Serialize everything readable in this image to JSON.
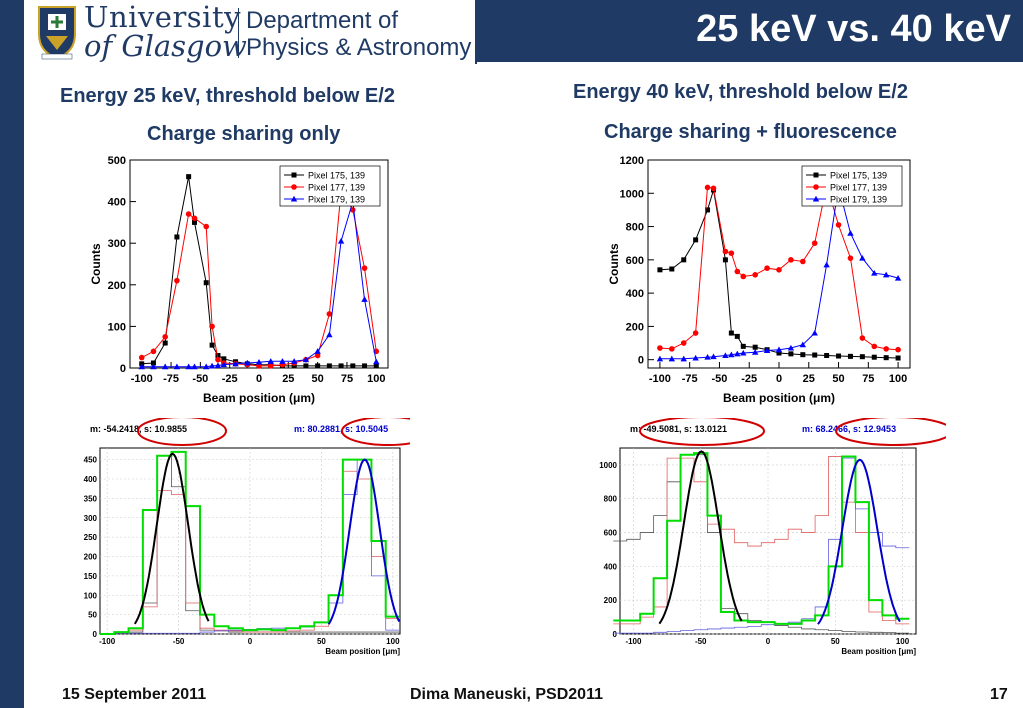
{
  "header": {
    "university_line1": "University",
    "university_line2": "of Glasgow",
    "department_line1": "Department of",
    "department_line2": "Physics & Astronomy",
    "slide_title": "25 keV vs. 40 keV"
  },
  "left_panel": {
    "heading": "Energy 25 keV, threshold below E/2",
    "subheading": "Charge sharing only"
  },
  "right_panel": {
    "heading": "Energy 40 keV, threshold below E/2",
    "subheading": "Charge sharing + fluorescence"
  },
  "footer": {
    "date": "15 September 2011",
    "author": "Dima Maneuski, PSD2011",
    "page": "17"
  },
  "colors": {
    "navy": "#1f3a64",
    "pixel_175": "#000000",
    "pixel_177": "#ff0000",
    "pixel_179": "#0000ff",
    "fit_green": "#00dd00",
    "ellipse": "#d00000"
  },
  "chart_data": [
    {
      "type": "line",
      "xlabel": "Beam position (μm)",
      "ylabel": "Counts",
      "xlim": [
        -110,
        110
      ],
      "ylim": [
        0,
        500
      ],
      "xticks": [
        -100,
        -75,
        -50,
        -25,
        0,
        25,
        50,
        75,
        100
      ],
      "yticks": [
        0,
        100,
        200,
        300,
        400,
        500
      ],
      "legend_position": "top-right",
      "series": [
        {
          "name": "Pixel 175, 139",
          "color": "#000000",
          "marker": "square",
          "x": [
            -100,
            -90,
            -80,
            -70,
            -60,
            -55,
            -45,
            -40,
            -35,
            -30,
            -20,
            -10,
            0,
            10,
            20,
            30,
            40,
            50,
            60,
            70,
            80,
            90,
            100
          ],
          "y": [
            10,
            12,
            60,
            315,
            460,
            350,
            205,
            55,
            30,
            22,
            15,
            10,
            8,
            8,
            5,
            5,
            5,
            5,
            5,
            5,
            5,
            5,
            5
          ]
        },
        {
          "name": "Pixel 177, 139",
          "color": "#ff0000",
          "marker": "circle",
          "x": [
            -100,
            -90,
            -80,
            -70,
            -60,
            -55,
            -45,
            -40,
            -35,
            -30,
            -20,
            -10,
            0,
            10,
            20,
            30,
            40,
            50,
            60,
            70,
            80,
            90,
            100
          ],
          "y": [
            25,
            40,
            75,
            210,
            370,
            360,
            340,
            100,
            20,
            12,
            10,
            8,
            5,
            5,
            8,
            12,
            20,
            30,
            130,
            425,
            380,
            240,
            40
          ]
        },
        {
          "name": "Pixel 179, 139",
          "color": "#0000ff",
          "marker": "triangle",
          "x": [
            -100,
            -90,
            -80,
            -70,
            -60,
            -55,
            -45,
            -40,
            -35,
            -30,
            -20,
            -10,
            0,
            10,
            20,
            30,
            40,
            50,
            60,
            70,
            80,
            90,
            100
          ],
          "y": [
            3,
            3,
            3,
            3,
            3,
            3,
            3,
            5,
            6,
            8,
            10,
            12,
            14,
            16,
            16,
            16,
            20,
            40,
            80,
            305,
            400,
            165,
            15
          ]
        }
      ]
    },
    {
      "type": "line",
      "xlabel": "Beam position (μm)",
      "ylabel": "Counts",
      "xlim": [
        -110,
        110
      ],
      "ylim": [
        -50,
        1200
      ],
      "xticks": [
        -100,
        -75,
        -50,
        -25,
        0,
        25,
        50,
        75,
        100
      ],
      "yticks": [
        0,
        200,
        400,
        600,
        800,
        1000,
        1200
      ],
      "legend_position": "top-right",
      "series": [
        {
          "name": "Pixel 175, 139",
          "color": "#000000",
          "marker": "square",
          "x": [
            -100,
            -90,
            -80,
            -70,
            -60,
            -55,
            -45,
            -40,
            -35,
            -30,
            -20,
            -10,
            0,
            10,
            20,
            30,
            40,
            50,
            60,
            70,
            80,
            90,
            100
          ],
          "y": [
            540,
            545,
            600,
            720,
            900,
            1020,
            600,
            160,
            140,
            80,
            75,
            60,
            40,
            35,
            30,
            28,
            25,
            22,
            20,
            18,
            15,
            12,
            10
          ]
        },
        {
          "name": "Pixel 177, 139",
          "color": "#ff0000",
          "marker": "circle",
          "x": [
            -100,
            -90,
            -80,
            -70,
            -60,
            -55,
            -45,
            -40,
            -35,
            -30,
            -20,
            -10,
            0,
            10,
            20,
            30,
            40,
            50,
            60,
            70,
            80,
            90,
            100
          ],
          "y": [
            70,
            65,
            100,
            160,
            1035,
            1030,
            650,
            640,
            530,
            500,
            510,
            550,
            540,
            600,
            590,
            700,
            1050,
            810,
            610,
            130,
            80,
            65,
            60
          ]
        },
        {
          "name": "Pixel 179, 139",
          "color": "#0000ff",
          "marker": "triangle",
          "x": [
            -100,
            -90,
            -80,
            -70,
            -60,
            -55,
            -45,
            -40,
            -35,
            -30,
            -20,
            -10,
            0,
            10,
            20,
            30,
            40,
            50,
            60,
            70,
            80,
            90,
            100
          ],
          "y": [
            5,
            5,
            5,
            10,
            15,
            18,
            25,
            30,
            35,
            40,
            45,
            55,
            60,
            70,
            90,
            160,
            570,
            1040,
            760,
            610,
            520,
            510,
            490
          ]
        }
      ]
    },
    {
      "type": "histogram",
      "fit_left_label": "m: -54.2418, s: 10.9855",
      "fit_right_label": "m: 80.2881, s: 10.5045",
      "xlabel": "Beam position [μm]",
      "xlim": [
        -105,
        105
      ],
      "ylim": [
        0,
        480
      ],
      "xticks": [
        -100,
        -50,
        0,
        50,
        100
      ],
      "yticks": [
        0,
        50,
        100,
        150,
        200,
        250,
        300,
        350,
        400,
        450
      ],
      "bins_x": [
        -100,
        -90,
        -80,
        -70,
        -60,
        -50,
        -40,
        -30,
        -20,
        -10,
        0,
        10,
        20,
        30,
        40,
        50,
        60,
        70,
        80,
        90,
        100
      ],
      "hist_black": [
        0,
        2,
        5,
        80,
        460,
        380,
        60,
        10,
        8,
        5,
        5,
        5,
        5,
        5,
        5,
        5,
        5,
        5,
        5,
        5,
        5
      ],
      "hist_red": [
        0,
        5,
        10,
        70,
        370,
        360,
        80,
        15,
        10,
        8,
        5,
        5,
        5,
        8,
        10,
        20,
        100,
        420,
        400,
        200,
        40
      ],
      "hist_blue": [
        0,
        2,
        2,
        2,
        2,
        2,
        2,
        5,
        8,
        10,
        12,
        14,
        15,
        15,
        18,
        30,
        80,
        360,
        450,
        150,
        10
      ],
      "hist_green": [
        0,
        5,
        15,
        320,
        460,
        470,
        330,
        50,
        20,
        15,
        10,
        12,
        10,
        15,
        20,
        30,
        100,
        450,
        450,
        240,
        45
      ],
      "fit_left": {
        "mean": -54.2418,
        "sigma": 10.9855,
        "amp": 465
      },
      "fit_right": {
        "mean": 80.2881,
        "sigma": 10.5045,
        "amp": 450
      }
    },
    {
      "type": "histogram",
      "fit_left_label": "m: -49.5081, s: 13.0121",
      "fit_right_label": "m: 68.2466, s: 12.9453",
      "xlabel": "Beam position [μm]",
      "xlim": [
        -110,
        110
      ],
      "ylim": [
        0,
        1100
      ],
      "xticks": [
        -100,
        -50,
        0,
        50,
        100
      ],
      "yticks": [
        0,
        200,
        400,
        600,
        800,
        1000
      ],
      "bins_x": [
        -110,
        -100,
        -90,
        -80,
        -70,
        -60,
        -50,
        -40,
        -30,
        -20,
        -10,
        0,
        10,
        20,
        30,
        40,
        50,
        60,
        70,
        80,
        90,
        100
      ],
      "hist_black": [
        550,
        560,
        600,
        700,
        900,
        1060,
        1060,
        600,
        150,
        120,
        80,
        70,
        50,
        40,
        30,
        25,
        20,
        15,
        12,
        10,
        8,
        5
      ],
      "hist_red": [
        60,
        60,
        100,
        160,
        1040,
        1040,
        900,
        650,
        620,
        540,
        520,
        540,
        560,
        620,
        600,
        700,
        1050,
        780,
        600,
        130,
        80,
        60
      ],
      "hist_blue": [
        5,
        5,
        5,
        10,
        15,
        20,
        25,
        30,
        35,
        40,
        45,
        55,
        60,
        70,
        90,
        160,
        560,
        1040,
        740,
        600,
        520,
        510
      ],
      "hist_green": [
        80,
        80,
        120,
        330,
        670,
        1060,
        1070,
        700,
        130,
        80,
        70,
        70,
        60,
        60,
        80,
        110,
        400,
        1050,
        780,
        200,
        110,
        90
      ],
      "fit_left": {
        "mean": -49.5081,
        "sigma": 13.0121,
        "amp": 1080
      },
      "fit_right": {
        "mean": 68.2466,
        "sigma": 12.9453,
        "amp": 1030
      }
    }
  ]
}
